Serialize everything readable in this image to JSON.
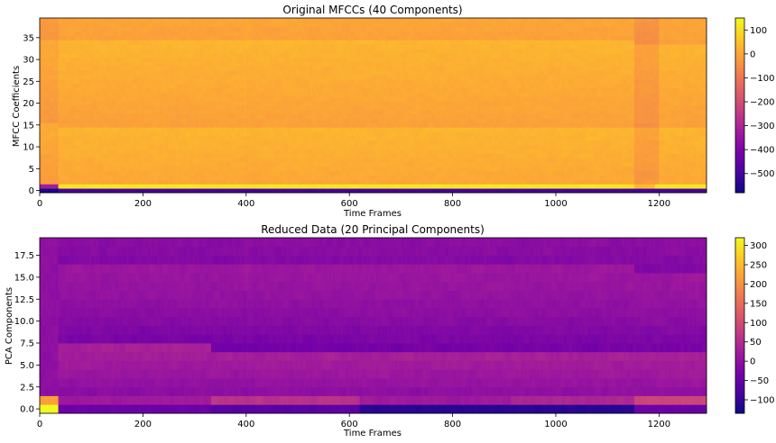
{
  "chart_data": [
    {
      "type": "heatmap",
      "title": "Original MFCCs (40 Components)",
      "xlabel": "Time Frames",
      "ylabel": "MFCC Coefficients",
      "xlim": [
        0,
        1292
      ],
      "ylim": [
        -0.5,
        39.5
      ],
      "xticks": [
        0,
        200,
        400,
        600,
        800,
        1000,
        1200
      ],
      "yticks": [
        0,
        5,
        10,
        15,
        20,
        25,
        30,
        35
      ],
      "ytick_labels": [
        "0",
        "5",
        "10",
        "15",
        "20",
        "25",
        "30",
        "35"
      ],
      "colormap": "plasma",
      "colorbar_range": [
        -580,
        150
      ],
      "colorbar_ticks": [
        100,
        0,
        -100,
        -200,
        -300,
        -400,
        -500
      ],
      "rows": 40,
      "cols": 1292,
      "typical_values": {
        "coefficient_0": -560,
        "coefficient_1": 120,
        "coefficients_2_to_39": 10,
        "first_frames_end": 35
      }
    },
    {
      "type": "heatmap",
      "title": "Reduced Data (20 Principal Components)",
      "xlabel": "Time Frames",
      "ylabel": "PCA Components",
      "xlim": [
        0,
        1292
      ],
      "ylim": [
        -0.5,
        19.5
      ],
      "xticks": [
        0,
        200,
        400,
        600,
        800,
        1000,
        1200
      ],
      "yticks": [
        0,
        2.5,
        5,
        7.5,
        10,
        12.5,
        15,
        17.5
      ],
      "ytick_labels": [
        "0.0",
        "2.5",
        "5.0",
        "7.5",
        "10.0",
        "12.5",
        "15.0",
        "17.5"
      ],
      "colormap": "plasma",
      "colorbar_range": [
        -135,
        320
      ],
      "colorbar_ticks": [
        300,
        250,
        200,
        150,
        100,
        50,
        0,
        -50,
        -100
      ],
      "rows": 20,
      "cols": 1292,
      "typical_values": {
        "component_0_first_frames": 320,
        "component_0_body": -40,
        "components_1_to_19": 0,
        "first_frames_end": 35
      }
    }
  ],
  "colors": {
    "plasma": [
      "#0d0887",
      "#46039f",
      "#7201a8",
      "#9c179e",
      "#bd3786",
      "#d8576b",
      "#ed7953",
      "#fb9f3a",
      "#fdca26",
      "#f0f921"
    ]
  }
}
